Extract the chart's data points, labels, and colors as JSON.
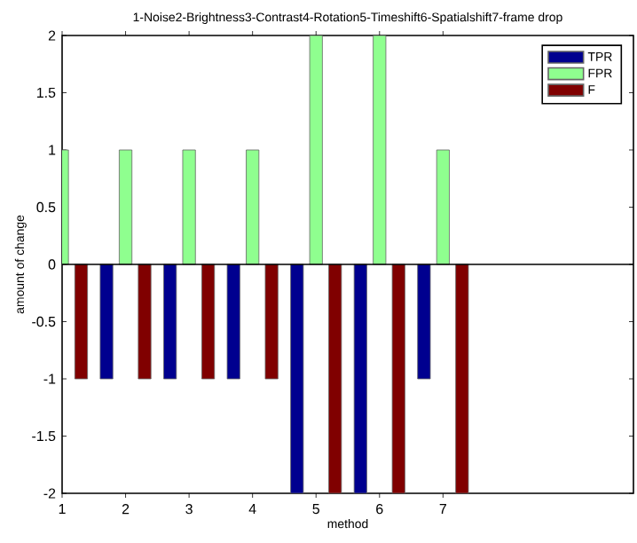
{
  "chart_data": {
    "type": "bar",
    "title": "1-Noise2-Brightness3-Contrast4-Rotation5-Timeshift6-Spatialshift7-frame drop",
    "xlabel": "method",
    "ylabel": "amount of change",
    "x": [
      1,
      2,
      3,
      4,
      5,
      6,
      7
    ],
    "series": [
      {
        "name": "TPR",
        "color": "#00008f",
        "values": [
          null,
          -1,
          -1,
          -1,
          -2,
          -2,
          -1
        ]
      },
      {
        "name": "FPR",
        "color": "#8fff8f",
        "values": [
          1,
          1,
          1,
          1,
          2,
          2,
          1
        ]
      },
      {
        "name": "F",
        "color": "#800000",
        "values": [
          -1,
          -1,
          -1,
          -1,
          -2,
          -2,
          -2
        ]
      }
    ],
    "xlim": [
      1,
      10
    ],
    "ylim": [
      -2,
      2
    ],
    "xticks": [
      1,
      2,
      3,
      4,
      5,
      6,
      7
    ],
    "yticks": [
      -2,
      -1.5,
      -1,
      -0.5,
      0,
      0.5,
      1,
      1.5,
      2
    ],
    "ref_lines": [
      {
        "axis": "y",
        "value": 0,
        "color": "#000000"
      }
    ],
    "grid": false,
    "legend": "top right"
  }
}
